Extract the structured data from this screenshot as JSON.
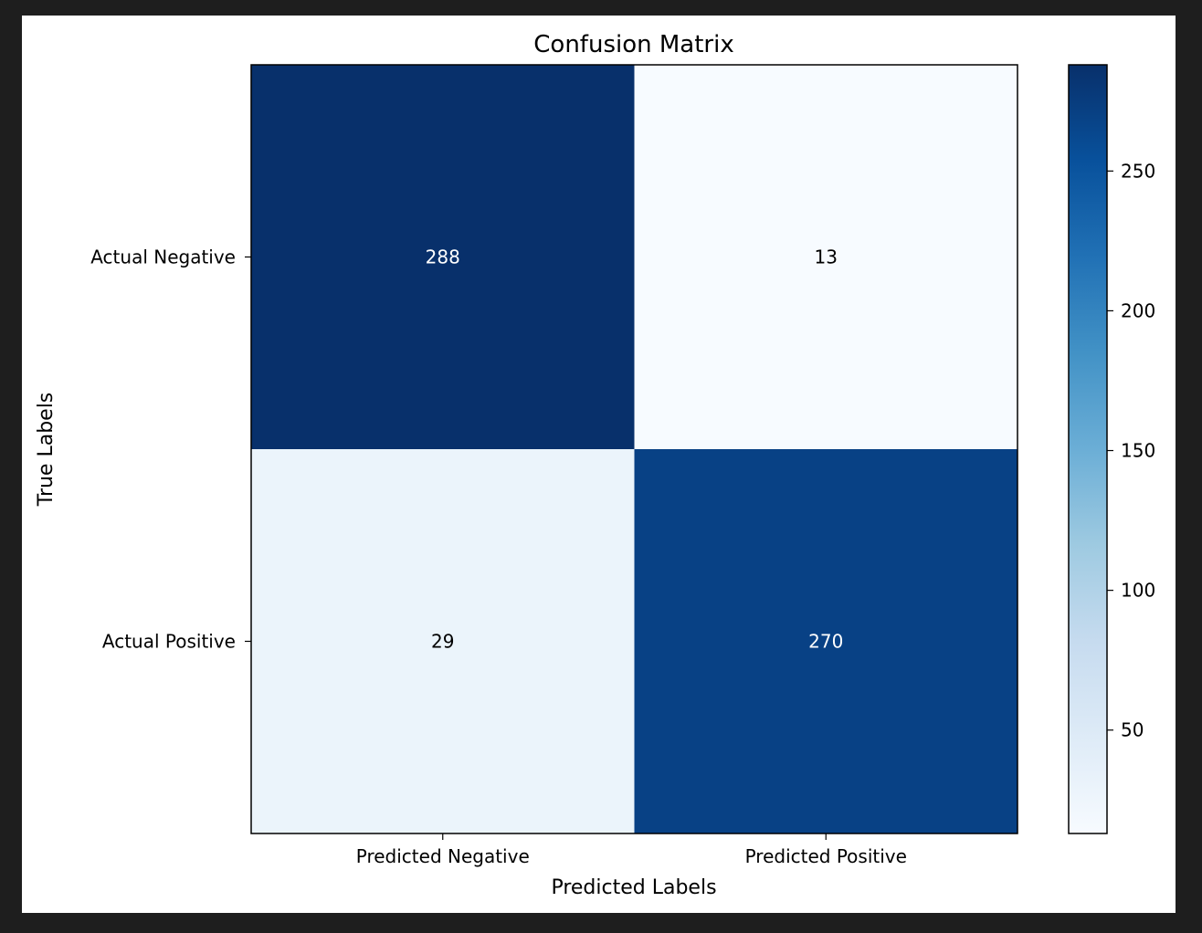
{
  "chart_data": {
    "type": "heatmap",
    "title": "Confusion Matrix",
    "xlabel": "Predicted Labels",
    "ylabel": "True Labels",
    "x_categories": [
      "Predicted Negative",
      "Predicted Positive"
    ],
    "y_categories": [
      "Actual Negative",
      "Actual Positive"
    ],
    "values": [
      [
        288,
        13
      ],
      [
        29,
        270
      ]
    ],
    "colormap": "Blues",
    "colorbar": {
      "vmin": 13,
      "vmax": 288,
      "ticks": [
        50,
        100,
        150,
        200,
        250
      ]
    },
    "colors": {
      "cell_text_dark_bg": "#ffffff",
      "cell_text_light_bg": "#000000"
    }
  }
}
